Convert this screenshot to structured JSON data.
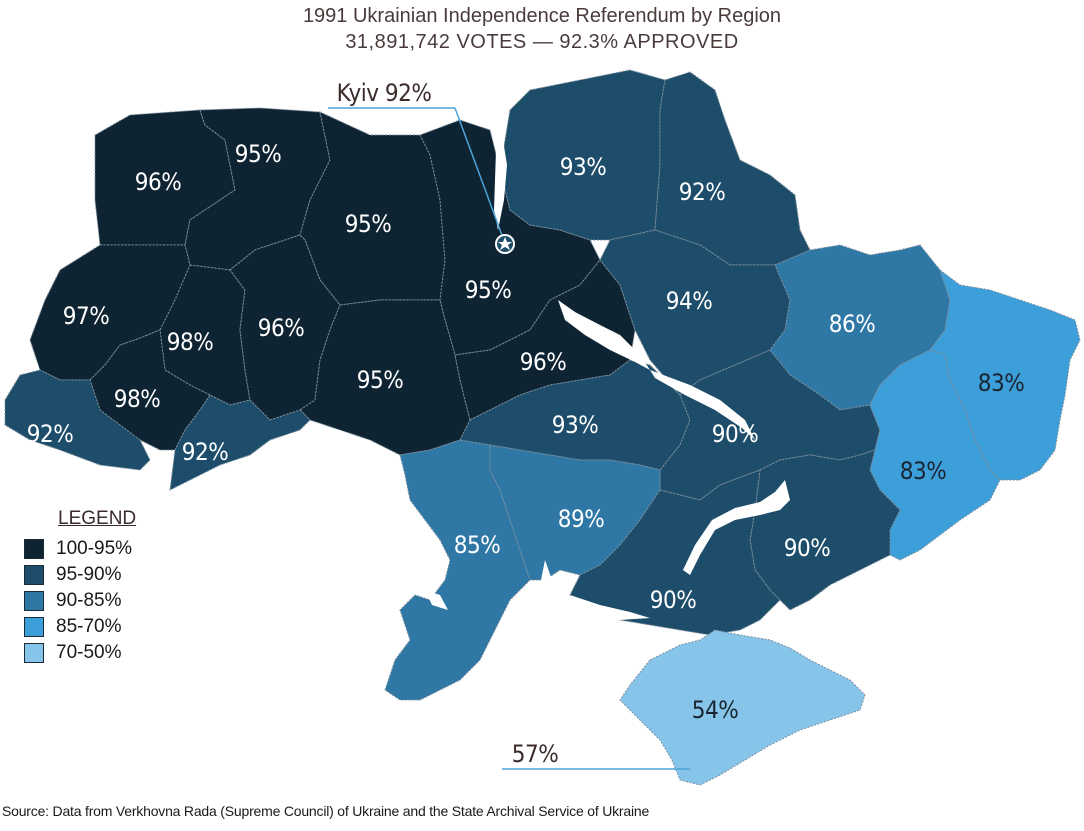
{
  "title": "1991 Ukrainian Independence Referendum by Region",
  "subtitle": "31,891,742 VOTES — 92.3% APPROVED",
  "colors": {
    "c100_95": "#0f2433",
    "c95_90": "#1d4d6a",
    "c90_85": "#2f78a6",
    "c85_70": "#3d9fda",
    "c70_50": "#87c4ea",
    "callout_line": "#4aa3d8"
  },
  "legend": {
    "title": "LEGEND",
    "items": [
      {
        "label": "100-95%",
        "color": "#0f2433"
      },
      {
        "label": "95-90%",
        "color": "#1d4d6a"
      },
      {
        "label": "90-85%",
        "color": "#2f78a6"
      },
      {
        "label": "85-70%",
        "color": "#3d9fda"
      },
      {
        "label": "70-50%",
        "color": "#87c4ea"
      }
    ]
  },
  "regions": [
    {
      "value": "96%"
    },
    {
      "value": "95%"
    },
    {
      "value": "95%"
    },
    {
      "value": "93%"
    },
    {
      "value": "92%"
    },
    {
      "value": "97%"
    },
    {
      "value": "98%"
    },
    {
      "value": "96%"
    },
    {
      "value": "95%"
    },
    {
      "value": "94%"
    },
    {
      "value": "86%"
    },
    {
      "value": "83%"
    },
    {
      "value": "98%"
    },
    {
      "value": "95%"
    },
    {
      "value": "96%"
    },
    {
      "value": "92%"
    },
    {
      "value": "92%"
    },
    {
      "value": "93%"
    },
    {
      "value": "90%"
    },
    {
      "value": "83%"
    },
    {
      "value": "85%"
    },
    {
      "value": "89%"
    },
    {
      "value": "90%"
    },
    {
      "value": "90%"
    },
    {
      "value": "54%"
    }
  ],
  "callouts": {
    "kyiv": "Kyiv 92%",
    "sevastopol": "57%",
    "kyiv_icon": "star-icon"
  },
  "source": "Source: Data from Verkhovna Rada (Supreme Council) of Ukraine and the State Archival Service of Ukraine"
}
